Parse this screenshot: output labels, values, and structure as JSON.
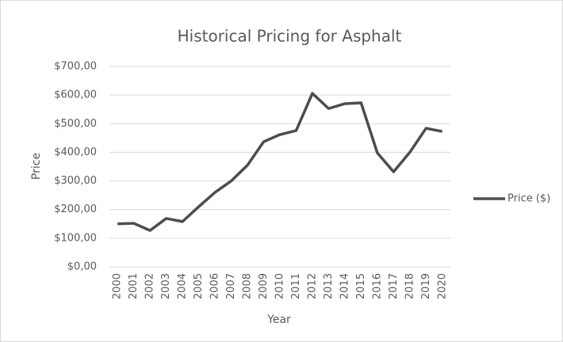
{
  "chart_data": {
    "type": "line",
    "title": "Historical Pricing for Asphalt",
    "x_label": "Year",
    "y_label": "Price",
    "categories": [
      "2000",
      "2001",
      "2002",
      "2003",
      "2004",
      "2005",
      "2006",
      "2007",
      "2008",
      "2009",
      "2010",
      "2011",
      "2012",
      "2013",
      "2014",
      "2015",
      "2016",
      "2017",
      "2018",
      "2019",
      "2020"
    ],
    "series": [
      {
        "name": "Price ($)",
        "color": "#4d4d4d",
        "values": [
          150,
          152,
          127,
          169,
          158,
          210,
          260,
          300,
          355,
          437,
          462,
          476,
          606,
          553,
          570,
          573,
          398,
          332,
          400,
          484,
          473
        ]
      }
    ],
    "ylim": [
      0,
      700
    ],
    "yticks": [
      {
        "value": 0,
        "label": "$0,00"
      },
      {
        "value": 100,
        "label": "$100,00"
      },
      {
        "value": 200,
        "label": "$200,00"
      },
      {
        "value": 300,
        "label": "$300,00"
      },
      {
        "value": 400,
        "label": "$400,00"
      },
      {
        "value": 500,
        "label": "$500,00"
      },
      {
        "value": 600,
        "label": "$600,00"
      },
      {
        "value": 700,
        "label": "$700,00"
      }
    ],
    "grid": true,
    "legend": "right"
  }
}
